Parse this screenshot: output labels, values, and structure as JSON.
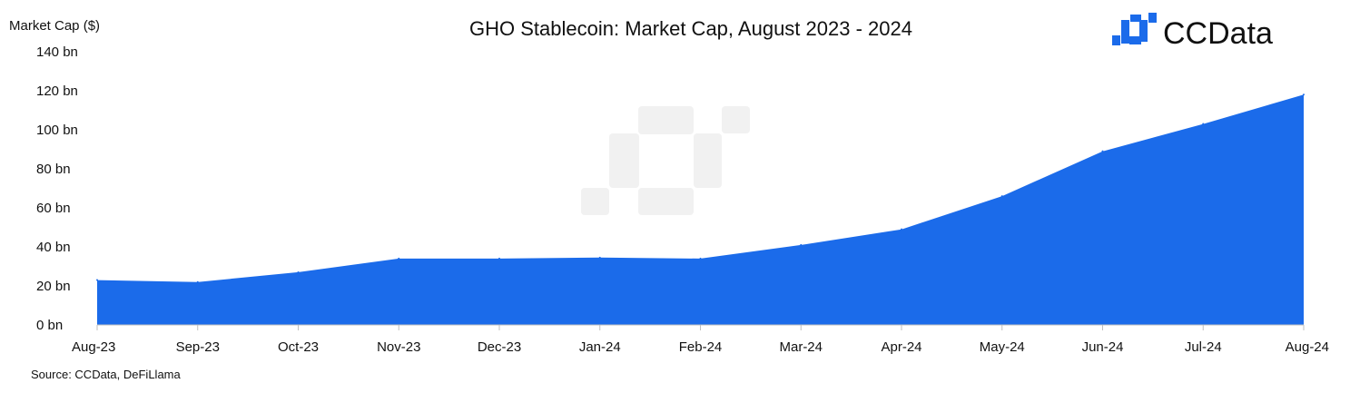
{
  "brand": {
    "name": "CCData",
    "accent": "#1b6bea"
  },
  "source": "Source: CCData, DeFiLlama",
  "chart_data": {
    "type": "area",
    "title": "GHO Stablecoin: Market Cap, August 2023 - 2024",
    "ylabel": "Market Cap ($)",
    "xlabel": "",
    "categories": [
      "Aug-23",
      "Sep-23",
      "Oct-23",
      "Nov-23",
      "Dec-23",
      "Jan-24",
      "Feb-24",
      "Mar-24",
      "Apr-24",
      "May-24",
      "Jun-24",
      "Jul-24",
      "Aug-24"
    ],
    "values": [
      23,
      22,
      27,
      34,
      34,
      34.5,
      34,
      41,
      49,
      66,
      89,
      103,
      118
    ],
    "ylim": [
      0,
      140
    ],
    "yticks": [
      0,
      20,
      40,
      60,
      80,
      100,
      120,
      140
    ],
    "ytick_labels": [
      "0 bn",
      "20 bn",
      "40 bn",
      "60 bn",
      "80 bn",
      "100 bn",
      "120 bn",
      "140 bn"
    ],
    "grid": false,
    "color": "#1b6bea"
  }
}
